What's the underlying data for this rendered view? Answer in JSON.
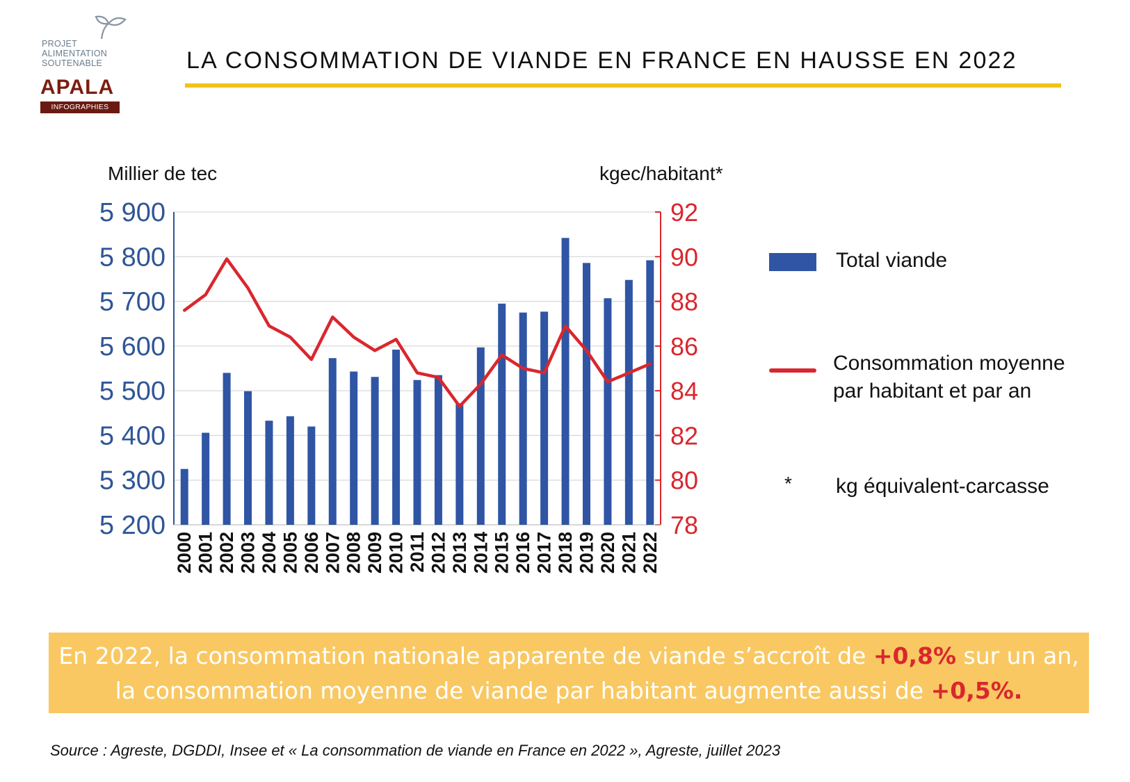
{
  "logo": {
    "lines": [
      "PROJET",
      "ALIMENTATION",
      "SOUTENABLE"
    ],
    "brand": "APALA",
    "band": "INFOGRAPHIES"
  },
  "title": "LA CONSOMMATION DE VIANDE EN FRANCE EN HAUSSE EN 2022",
  "colors": {
    "bar": "#2f55a4",
    "line": "#d9272e",
    "left_axis": "#2f5597",
    "underline": "#f2c318",
    "banner": "#f9c862"
  },
  "chart_data": {
    "type": "bar",
    "categories": [
      "2000",
      "2001",
      "2002",
      "2003",
      "2004",
      "2005",
      "2006",
      "2007",
      "2008",
      "2009",
      "2010",
      "2011",
      "2012",
      "2013",
      "2014",
      "2015",
      "2016",
      "2017",
      "2018",
      "2019",
      "2020",
      "2021",
      "2022"
    ],
    "series": [
      {
        "name": "Total viande",
        "type": "bar",
        "axis": "left",
        "values": [
          5325,
          5406,
          5540,
          5499,
          5433,
          5443,
          5420,
          5573,
          5543,
          5531,
          5592,
          5524,
          5535,
          5472,
          5597,
          5695,
          5675,
          5677,
          5842,
          5786,
          5707,
          5748,
          5792
        ]
      },
      {
        "name": "Consommation moyenne par habitant et par an",
        "type": "line",
        "axis": "right",
        "values": [
          87.6,
          88.3,
          89.9,
          88.6,
          86.9,
          86.4,
          85.4,
          87.3,
          86.4,
          85.8,
          86.3,
          84.8,
          84.6,
          83.3,
          84.3,
          85.6,
          85.0,
          84.8,
          86.9,
          85.8,
          84.4,
          84.8,
          85.2
        ]
      }
    ],
    "ylabel_left": "Millier de tec",
    "ylabel_right": "kgec/habitant*",
    "ylim_left": [
      5200,
      5900
    ],
    "ylim_right": [
      78,
      92
    ],
    "yticks_left": [
      "5 900",
      "5 800",
      "5 700",
      "5 600",
      "5 500",
      "5 400",
      "5 300",
      "5 200"
    ],
    "yticks_right": [
      "92",
      "90",
      "88",
      "86",
      "84",
      "82",
      "80",
      "78"
    ],
    "grid": true,
    "legend_position": "right"
  },
  "legend": {
    "bar_label": "Total viande",
    "line_label_1": "Consommation moyenne",
    "line_label_2": "par habitant et par an",
    "note_symbol": "*",
    "note_label": "kg équivalent-carcasse"
  },
  "banner": {
    "line1_text": "En 2022, la consommation nationale apparente de viande s’accroît de ",
    "line1_highlight": "+0,8%",
    "line1_end": " sur un an,",
    "line2_text": "la consommation moyenne de viande par habitant augmente aussi de ",
    "line2_highlight": "+0,5%."
  },
  "source": "Source : Agreste, DGDDI, Insee et « La consommation de viande en France en 2022 », Agreste, juillet 2023"
}
